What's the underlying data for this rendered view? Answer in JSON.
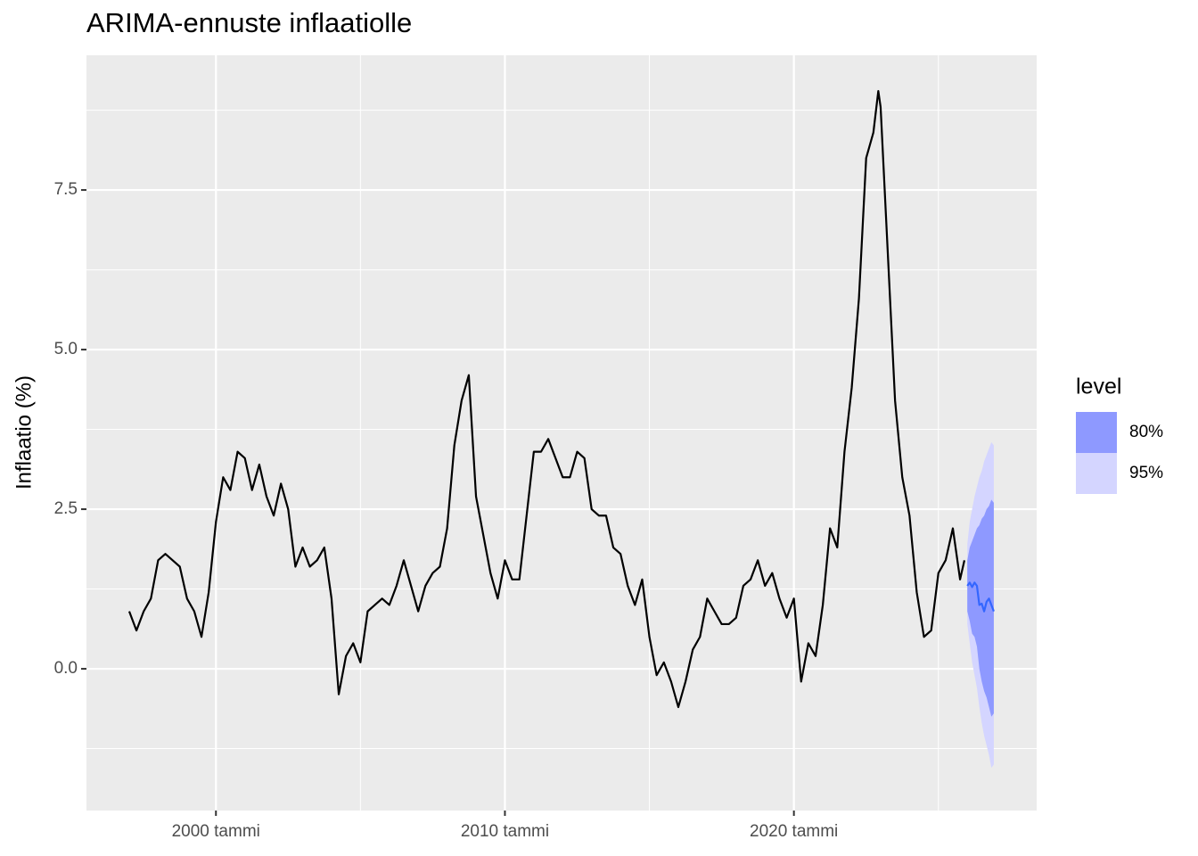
{
  "chart_data": {
    "type": "line",
    "title": "ARIMA-ennuste inflaatiolle",
    "y_label": "Inflaatio (%)",
    "xlim": [
      1995.52,
      2028.4
    ],
    "ylim": [
      -2.22,
      9.61
    ],
    "xticks": [
      {
        "value": 2000,
        "label": "2000 tammi"
      },
      {
        "value": 2010,
        "label": "2010 tammi"
      },
      {
        "value": 2020,
        "label": "2020 tammi"
      }
    ],
    "yticks": [
      {
        "value": 0,
        "label": "0.0"
      },
      2.5,
      {
        "value": 5,
        "label": "5.0"
      },
      7.5
    ],
    "grid": true,
    "series": [
      {
        "color": "#000000",
        "x": [
          1997,
          1997.25,
          1997.5,
          1997.75,
          1998,
          1998.25,
          1998.5,
          1998.75,
          1999,
          1999.25,
          1999.5,
          1999.75,
          2000,
          2000.25,
          2000.5,
          2000.75,
          2001,
          2001.25,
          2001.5,
          2001.75,
          2002,
          2002.25,
          2002.5,
          2002.75,
          2003,
          2003.25,
          2003.5,
          2003.75,
          2004,
          2004.25,
          2004.5,
          2004.75,
          2005,
          2005.25,
          2005.5,
          2005.75,
          2006,
          2006.25,
          2006.5,
          2006.75,
          2007,
          2007.25,
          2007.5,
          2007.75,
          2008,
          2008.25,
          2008.5,
          2008.75,
          2009,
          2009.25,
          2009.5,
          2009.75,
          2010,
          2010.25,
          2010.5,
          2010.75,
          2011,
          2011.25,
          2011.5,
          2011.75,
          2012,
          2012.25,
          2012.5,
          2012.75,
          2013,
          2013.25,
          2013.5,
          2013.75,
          2014,
          2014.25,
          2014.5,
          2014.75,
          2015,
          2015.25,
          2015.5,
          2015.75,
          2016,
          2016.25,
          2016.5,
          2016.75,
          2017,
          2017.25,
          2017.5,
          2017.75,
          2018,
          2018.25,
          2018.5,
          2018.75,
          2019,
          2019.25,
          2019.5,
          2019.75,
          2020,
          2020.25,
          2020.5,
          2020.75,
          2021,
          2021.25,
          2021.5,
          2021.75,
          2022,
          2022.25,
          2022.5,
          2022.75,
          2022.92,
          2023,
          2023.25,
          2023.5,
          2023.75,
          2024,
          2024.25,
          2024.5,
          2024.75,
          2025,
          2025.25,
          2025.5,
          2025.75,
          2025.9
        ],
        "values": [
          0.9,
          0.6,
          0.9,
          1.1,
          1.7,
          1.8,
          1.7,
          1.6,
          1.1,
          0.9,
          0.5,
          1.2,
          2.3,
          3.0,
          2.8,
          3.4,
          3.3,
          2.8,
          3.2,
          2.7,
          2.4,
          2.9,
          2.5,
          1.6,
          1.9,
          1.6,
          1.7,
          1.9,
          1.1,
          -0.4,
          0.2,
          0.4,
          0.1,
          0.9,
          1.0,
          1.1,
          1.0,
          1.3,
          1.7,
          1.3,
          0.9,
          1.3,
          1.5,
          1.6,
          2.2,
          3.5,
          4.2,
          4.6,
          2.7,
          2.1,
          1.5,
          1.1,
          1.7,
          1.4,
          1.4,
          2.4,
          3.4,
          3.4,
          3.6,
          3.3,
          3.0,
          3.0,
          3.4,
          3.3,
          2.5,
          2.4,
          2.4,
          1.9,
          1.8,
          1.3,
          1.0,
          1.4,
          0.5,
          -0.1,
          0.1,
          -0.2,
          -0.6,
          -0.2,
          0.3,
          0.5,
          1.1,
          0.9,
          0.7,
          0.7,
          0.8,
          1.3,
          1.4,
          1.7,
          1.3,
          1.5,
          1.1,
          0.8,
          1.1,
          -0.2,
          0.4,
          0.2,
          1.0,
          2.2,
          1.9,
          3.4,
          4.4,
          5.8,
          8.0,
          8.4,
          9.05,
          8.8,
          6.5,
          4.2,
          3.0,
          2.4,
          1.2,
          0.5,
          0.6,
          1.5,
          1.7,
          2.2,
          1.4,
          1.7
        ]
      },
      {
        "color": "#3366ff",
        "x": [
          2026,
          2026.083,
          2026.167,
          2026.25,
          2026.333,
          2026.417,
          2026.5,
          2026.583,
          2026.667,
          2026.75,
          2026.833,
          2026.917
        ],
        "values": [
          1.3,
          1.35,
          1.28,
          1.35,
          1.3,
          1.0,
          1.02,
          0.9,
          1.05,
          1.1,
          1.0,
          0.9
        ]
      }
    ],
    "legend_title": "level",
    "bands": [
      {
        "name": "80%",
        "color": "#8e99ff",
        "upper": [
          1.7,
          1.9,
          2.0,
          2.1,
          2.2,
          2.25,
          2.35,
          2.4,
          2.5,
          2.55,
          2.65,
          2.6
        ],
        "lower": [
          0.9,
          0.75,
          0.55,
          0.5,
          0.35,
          0.0,
          -0.2,
          -0.35,
          -0.45,
          -0.6,
          -0.75,
          -0.7
        ]
      },
      {
        "name": "95%",
        "color": "#d4d5ff",
        "upper": [
          1.95,
          2.3,
          2.5,
          2.7,
          2.85,
          3.0,
          3.1,
          3.25,
          3.35,
          3.45,
          3.55,
          3.5
        ],
        "lower": [
          0.7,
          0.4,
          0.1,
          -0.1,
          -0.3,
          -0.6,
          -0.85,
          -1.05,
          -1.2,
          -1.35,
          -1.55,
          -1.5
        ]
      }
    ]
  }
}
